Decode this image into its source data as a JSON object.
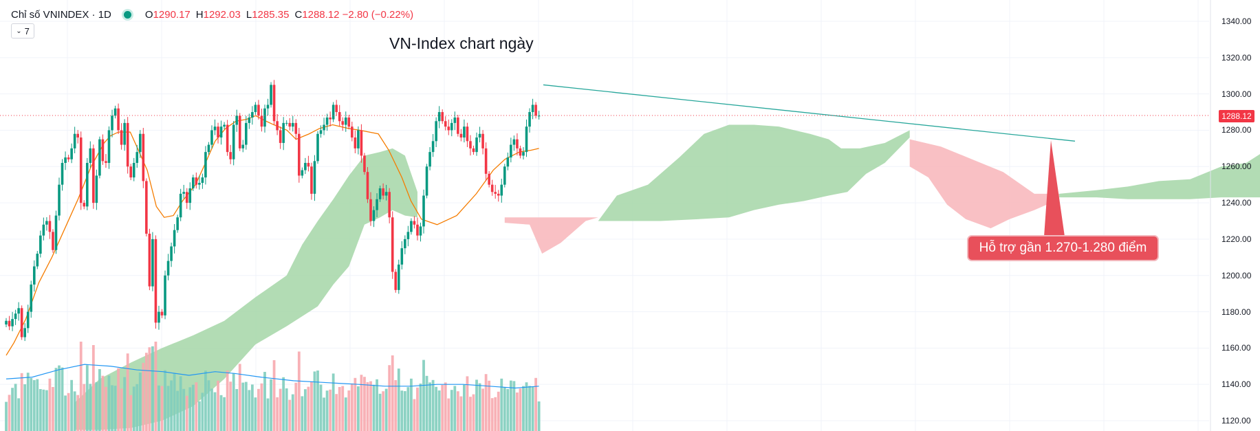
{
  "header": {
    "symbol": "Chỉ số VNINDEX · 1D",
    "ohlc": [
      {
        "key": "O",
        "value": "1290.17"
      },
      {
        "key": "H",
        "value": "1292.03"
      },
      {
        "key": "L",
        "value": "1285.35"
      },
      {
        "key": "C",
        "value": "1288.12 −2.80 (−0.22%)"
      }
    ],
    "indicator_count": "7"
  },
  "colors": {
    "up": "#089981",
    "down": "#f23645",
    "cloud_up": "#a5d6a7",
    "cloud_down": "#f8b5ba",
    "ma": "#f57c00",
    "vol_ma": "#2196f3",
    "trendline": "#26a69a"
  },
  "chart_data": {
    "type": "candlestick",
    "title": "VN-Index chart ngày",
    "last_price_label": "1288.12",
    "annotation": "Hỗ trợ gần 1.270-1.280 điểm",
    "ylim": [
      1115,
      1345
    ],
    "y_ticks": [
      "1340.00",
      "1320.00",
      "1300.00",
      "1280.00",
      "1260.00",
      "1240.00",
      "1220.00",
      "1200.00",
      "1180.00",
      "1160.00",
      "1140.00",
      "1120.00"
    ],
    "y_tick_values": [
      1340,
      1320,
      1300,
      1280,
      1260,
      1240,
      1220,
      1200,
      1180,
      1160,
      1140,
      1120
    ],
    "current_price": 1288.12,
    "trendline": [
      {
        "bar": 115,
        "price": 1305
      },
      {
        "bar": 258,
        "price": 1274
      }
    ],
    "closes": [
      1175,
      1172,
      1176,
      1179,
      1182,
      1166,
      1171,
      1180,
      1195,
      1205,
      1212,
      1222,
      1228,
      1230,
      1224,
      1214,
      1233,
      1250,
      1262,
      1265,
      1264,
      1270,
      1278,
      1276,
      1240,
      1238,
      1262,
      1270,
      1240,
      1255,
      1275,
      1263,
      1262,
      1280,
      1288,
      1292,
      1280,
      1272,
      1284,
      1260,
      1254,
      1262,
      1268,
      1278,
      1252,
      1223,
      1194,
      1220,
      1174,
      1180,
      1178,
      1200,
      1208,
      1216,
      1225,
      1232,
      1245,
      1246,
      1240,
      1248,
      1254,
      1250,
      1251,
      1254,
      1268,
      1272,
      1280,
      1282,
      1276,
      1282,
      1283,
      1268,
      1264,
      1283,
      1288,
      1270,
      1272,
      1284,
      1287,
      1290,
      1294,
      1288,
      1282,
      1292,
      1294,
      1305,
      1285,
      1280,
      1273,
      1284,
      1284,
      1282,
      1284,
      1278,
      1255,
      1258,
      1262,
      1260,
      1245,
      1263,
      1278,
      1280,
      1283,
      1287,
      1286,
      1294,
      1290,
      1285,
      1283,
      1287,
      1282,
      1276,
      1270,
      1280,
      1266,
      1257,
      1242,
      1230,
      1236,
      1242,
      1248,
      1244,
      1246,
      1232,
      1202,
      1192,
      1206,
      1215,
      1220,
      1224,
      1230,
      1228,
      1222,
      1227,
      1244,
      1260,
      1268,
      1274,
      1285,
      1290,
      1285,
      1282,
      1280,
      1284,
      1287,
      1278,
      1276,
      1282,
      1274,
      1270,
      1268,
      1276,
      1278,
      1270,
      1256,
      1250,
      1246,
      1245,
      1244,
      1250,
      1260,
      1265,
      1272,
      1275,
      1270,
      1266,
      1268,
      1282,
      1290,
      1294,
      1288,
      1288
    ],
    "opens_delta_hint": "open of each bar equals previous close",
    "ma_points": [
      [
        0,
        1156
      ],
      [
        6,
        1163
      ],
      [
        15,
        1176
      ],
      [
        25,
        1196
      ],
      [
        35,
        1210
      ],
      [
        45,
        1226
      ],
      [
        55,
        1242
      ],
      [
        65,
        1260
      ],
      [
        75,
        1273
      ],
      [
        80,
        1277
      ],
      [
        86,
        1279
      ],
      [
        95,
        1279
      ],
      [
        100,
        1271
      ],
      [
        108,
        1258
      ],
      [
        115,
        1238
      ],
      [
        121,
        1232
      ],
      [
        128,
        1233
      ],
      [
        135,
        1241
      ],
      [
        145,
        1250
      ],
      [
        152,
        1261
      ],
      [
        160,
        1274
      ],
      [
        168,
        1281
      ],
      [
        176,
        1285
      ],
      [
        184,
        1286
      ],
      [
        191,
        1288
      ],
      [
        199,
        1285
      ],
      [
        205,
        1283
      ],
      [
        215,
        1280
      ],
      [
        222,
        1275
      ],
      [
        232,
        1278
      ],
      [
        240,
        1281
      ],
      [
        250,
        1283
      ],
      [
        262,
        1281
      ],
      [
        271,
        1280
      ],
      [
        285,
        1278
      ],
      [
        293,
        1269
      ],
      [
        303,
        1254
      ],
      [
        310,
        1241
      ],
      [
        318,
        1231
      ],
      [
        330,
        1228
      ],
      [
        345,
        1233
      ],
      [
        360,
        1245
      ],
      [
        373,
        1258
      ],
      [
        382,
        1264
      ],
      [
        393,
        1268
      ],
      [
        402,
        1269
      ],
      [
        408,
        1270
      ]
    ],
    "vol_ma_points": [
      [
        0,
        1143
      ],
      [
        20,
        1144
      ],
      [
        40,
        1148
      ],
      [
        60,
        1151
      ],
      [
        80,
        1150
      ],
      [
        100,
        1148
      ],
      [
        120,
        1147
      ],
      [
        140,
        1145
      ],
      [
        160,
        1147
      ],
      [
        175,
        1146
      ],
      [
        195,
        1144
      ],
      [
        220,
        1142
      ],
      [
        245,
        1141
      ],
      [
        270,
        1140
      ],
      [
        290,
        1139
      ],
      [
        310,
        1139
      ],
      [
        330,
        1140
      ],
      [
        350,
        1140
      ],
      [
        370,
        1139
      ],
      [
        390,
        1138
      ],
      [
        408,
        1139
      ]
    ],
    "cloud_green": {
      "top": [
        [
          22,
          1130
        ],
        [
          30,
          1143
        ],
        [
          40,
          1152
        ],
        [
          50,
          1160
        ],
        [
          60,
          1167
        ],
        [
          70,
          1175
        ],
        [
          80,
          1188
        ],
        [
          90,
          1200
        ],
        [
          95,
          1217
        ],
        [
          100,
          1230
        ],
        [
          105,
          1242
        ],
        [
          110,
          1255
        ],
        [
          115,
          1266
        ],
        [
          120,
          1268
        ],
        [
          124,
          1270
        ],
        [
          128,
          1266
        ],
        [
          132,
          1246
        ]
      ],
      "bottom": [
        [
          132,
          1232
        ],
        [
          128,
          1233
        ],
        [
          124,
          1236
        ],
        [
          120,
          1232
        ],
        [
          115,
          1228
        ],
        [
          110,
          1205
        ],
        [
          105,
          1195
        ],
        [
          100,
          1183
        ],
        [
          90,
          1172
        ],
        [
          80,
          1162
        ],
        [
          70,
          1143
        ],
        [
          60,
          1128
        ],
        [
          50,
          1120
        ],
        [
          40,
          1116
        ],
        [
          30,
          1115
        ],
        [
          22,
          1115
        ]
      ]
    },
    "cloud_red_1": {
      "top": [
        [
          160,
          1232
        ],
        [
          170,
          1232
        ],
        [
          178,
          1232
        ],
        [
          186,
          1232
        ],
        [
          190,
          1232
        ]
      ],
      "bottom": [
        [
          190,
          1232
        ],
        [
          186,
          1230
        ],
        [
          178,
          1218
        ],
        [
          172,
          1212
        ],
        [
          168,
          1228
        ],
        [
          160,
          1229
        ]
      ]
    },
    "cloud_green_2": {
      "top": [
        [
          190,
          1230
        ],
        [
          196,
          1244
        ],
        [
          206,
          1250
        ],
        [
          216,
          1265
        ],
        [
          224,
          1278
        ],
        [
          232,
          1283
        ],
        [
          240,
          1283
        ],
        [
          248,
          1282
        ],
        [
          258,
          1278
        ],
        [
          264,
          1275
        ],
        [
          268,
          1270
        ],
        [
          274,
          1270
        ],
        [
          282,
          1273
        ],
        [
          290,
          1280
        ]
      ],
      "bottom": [
        [
          290,
          1276
        ],
        [
          282,
          1262
        ],
        [
          276,
          1256
        ],
        [
          270,
          1246
        ],
        [
          264,
          1244
        ],
        [
          256,
          1241
        ],
        [
          248,
          1239
        ],
        [
          240,
          1236
        ],
        [
          232,
          1232
        ],
        [
          222,
          1231
        ],
        [
          210,
          1230
        ],
        [
          200,
          1230
        ],
        [
          190,
          1230
        ]
      ]
    },
    "cloud_red_2": {
      "top": [
        [
          290,
          1275
        ],
        [
          300,
          1271
        ],
        [
          310,
          1264
        ],
        [
          320,
          1257
        ],
        [
          330,
          1245
        ],
        [
          338,
          1245
        ]
      ],
      "bottom": [
        [
          338,
          1242
        ],
        [
          330,
          1236
        ],
        [
          322,
          1231
        ],
        [
          316,
          1226
        ],
        [
          308,
          1231
        ],
        [
          302,
          1239
        ],
        [
          296,
          1254
        ],
        [
          290,
          1260
        ]
      ]
    },
    "cloud_green_3": {
      "top": [
        [
          338,
          1245
        ],
        [
          350,
          1247
        ],
        [
          360,
          1249
        ],
        [
          370,
          1252
        ],
        [
          380,
          1253
        ],
        [
          390,
          1260
        ],
        [
          398,
          1262
        ],
        [
          408,
          1273
        ]
      ],
      "bottom": [
        [
          408,
          1243
        ],
        [
          398,
          1243
        ],
        [
          390,
          1243
        ],
        [
          380,
          1242
        ],
        [
          370,
          1242
        ],
        [
          360,
          1242
        ],
        [
          350,
          1243
        ],
        [
          338,
          1243
        ]
      ]
    }
  }
}
